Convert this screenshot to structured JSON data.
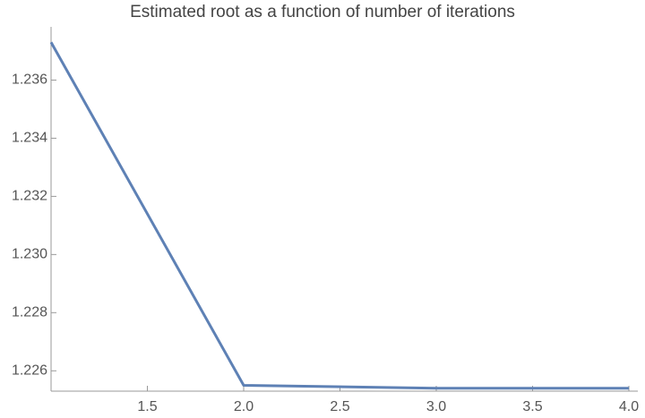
{
  "chart_data": {
    "type": "line",
    "title": "Estimated root as a function of number of iterations",
    "x": [
      1,
      2,
      3,
      4
    ],
    "series": [
      {
        "color": "#5e81b5",
        "values": [
          1.2373,
          1.2255,
          1.2254,
          1.2254
        ]
      }
    ],
    "xlim": [
      1,
      4
    ],
    "xticks": [
      1.5,
      {
        "value": 2,
        "label": "2.0"
      },
      2.5,
      {
        "value": 3,
        "label": "3.0"
      },
      3.5,
      {
        "value": 4,
        "label": "4.0"
      }
    ],
    "ylim": [
      1.2253,
      1.2374
    ],
    "yticks": [
      {
        "value": 1.226,
        "label": "1.226"
      },
      {
        "value": 1.228,
        "label": "1.228"
      },
      {
        "value": 1.23,
        "label": "1.230"
      },
      {
        "value": 1.232,
        "label": "1.232"
      },
      {
        "value": 1.234,
        "label": "1.234"
      },
      {
        "value": 1.236,
        "label": "1.236"
      }
    ]
  }
}
